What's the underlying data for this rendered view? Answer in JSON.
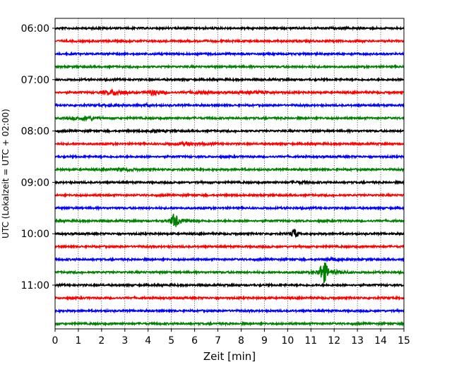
{
  "chart_data": {
    "type": "line",
    "title": "",
    "xlabel": "Zeit  [min]",
    "ylabel": "UTC (Lokalzeit = UTC + 02:00)",
    "xlim": [
      0,
      15
    ],
    "x_ticks": [
      "0",
      "1",
      "2",
      "3",
      "4",
      "5",
      "6",
      "7",
      "8",
      "9",
      "10",
      "11",
      "12",
      "13",
      "14",
      "15"
    ],
    "y_tick_labels": [
      "06:00",
      "07:00",
      "08:00",
      "09:00",
      "10:00",
      "11:00"
    ],
    "row_interval_minutes": 15,
    "grid": "vertical-dotted",
    "legend": "none",
    "row_colors": [
      "#000000",
      "#ff0000",
      "#0000ff",
      "#008000"
    ],
    "series": [
      {
        "start": "06:00",
        "events": []
      },
      {
        "start": "06:15",
        "events": []
      },
      {
        "start": "06:30",
        "events": []
      },
      {
        "start": "06:45",
        "events": []
      },
      {
        "start": "07:00",
        "events": []
      },
      {
        "start": "07:15",
        "events": [
          {
            "x": 2.6,
            "amp": 0.3,
            "width": 0.5
          },
          {
            "x": 4.3,
            "amp": 0.28,
            "width": 0.35
          },
          {
            "x": 6.2,
            "amp": 0.12,
            "width": 0.6
          },
          {
            "x": 8.8,
            "amp": 0.12,
            "width": 0.8
          }
        ]
      },
      {
        "start": "07:30",
        "events": [
          {
            "x": 2.4,
            "amp": 0.12,
            "width": 0.4
          },
          {
            "x": 3.9,
            "amp": 0.12,
            "width": 0.3
          }
        ]
      },
      {
        "start": "07:45",
        "events": [
          {
            "x": 1.3,
            "amp": 0.22,
            "width": 0.5
          }
        ]
      },
      {
        "start": "08:00",
        "events": [
          {
            "x": 4.3,
            "amp": 0.1,
            "width": 0.5
          }
        ]
      },
      {
        "start": "08:15",
        "events": [
          {
            "x": 5.7,
            "amp": 0.16,
            "width": 0.7
          }
        ]
      },
      {
        "start": "08:30",
        "events": []
      },
      {
        "start": "08:45",
        "events": [
          {
            "x": 3.0,
            "amp": 0.1,
            "width": 0.6
          }
        ]
      },
      {
        "start": "09:00",
        "events": [
          {
            "x": 10.6,
            "amp": 0.1,
            "width": 0.4
          }
        ]
      },
      {
        "start": "09:15",
        "events": []
      },
      {
        "start": "09:30",
        "events": []
      },
      {
        "start": "09:45",
        "events": [
          {
            "x": 5.15,
            "amp": 0.95,
            "width": 0.15
          },
          {
            "x": 5.4,
            "amp": 0.22,
            "width": 0.5
          }
        ]
      },
      {
        "start": "10:00",
        "events": [
          {
            "x": 10.3,
            "amp": 0.65,
            "width": 0.15
          }
        ]
      },
      {
        "start": "10:15",
        "events": []
      },
      {
        "start": "10:30",
        "events": [
          {
            "x": 12.0,
            "amp": 0.18,
            "width": 0.4
          }
        ]
      },
      {
        "start": "10:45",
        "events": [
          {
            "x": 11.55,
            "amp": 1.45,
            "width": 0.18
          },
          {
            "x": 11.9,
            "amp": 0.2,
            "width": 0.6
          }
        ]
      },
      {
        "start": "11:00",
        "events": []
      },
      {
        "start": "11:15",
        "events": []
      },
      {
        "start": "11:30",
        "events": []
      },
      {
        "start": "11:45",
        "events": []
      }
    ]
  }
}
